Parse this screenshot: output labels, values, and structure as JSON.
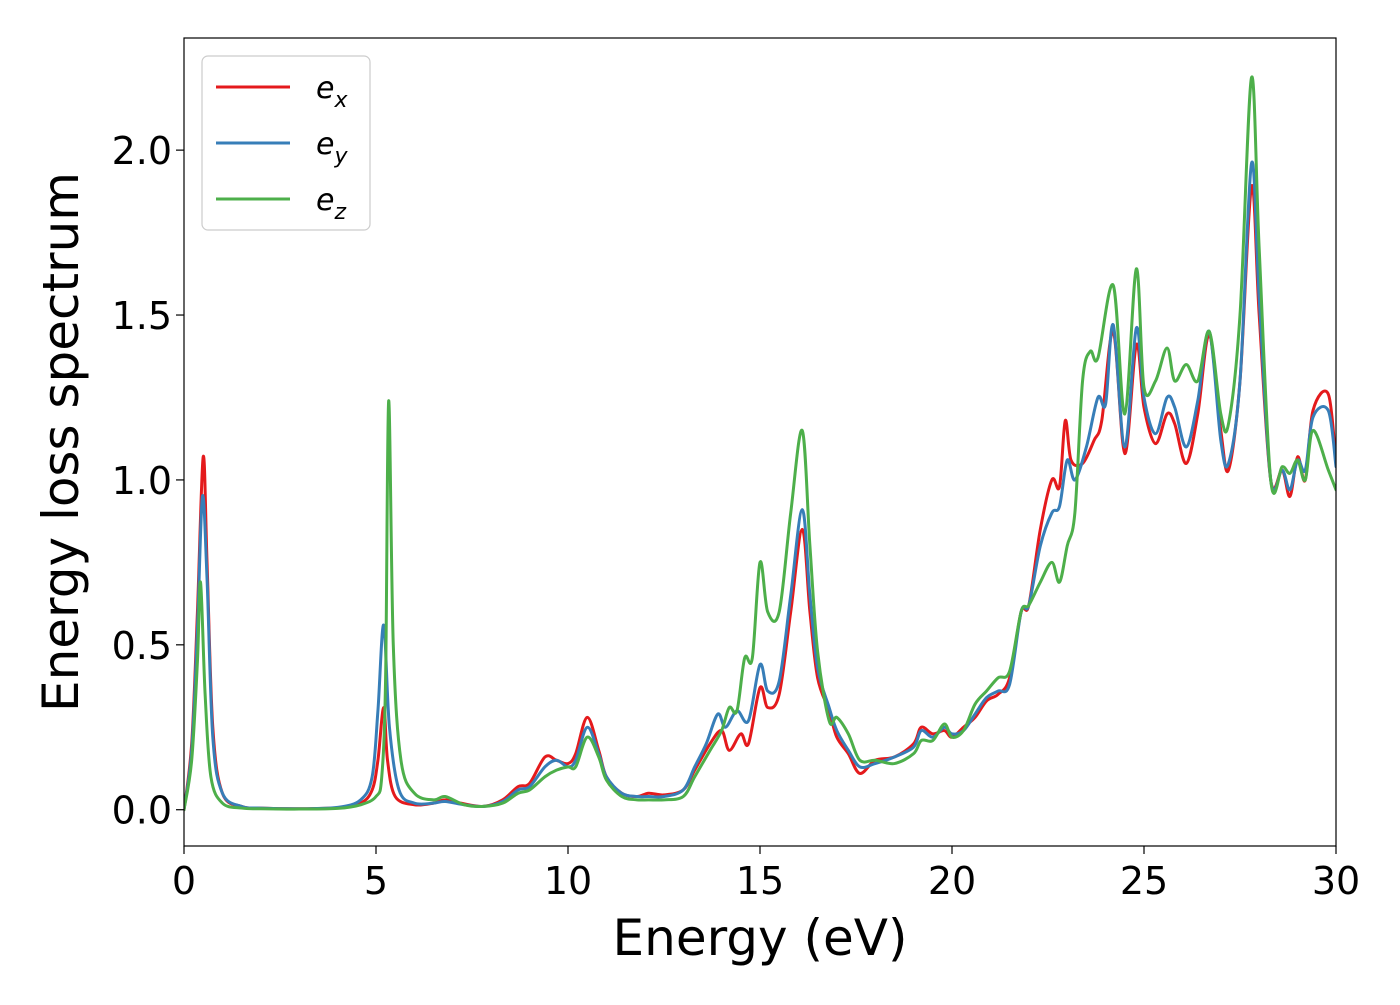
{
  "chart_data": {
    "type": "line",
    "xlabel": "Energy (eV)",
    "ylabel": "Energy loss spectrum",
    "xlim": [
      0,
      30
    ],
    "ylim": [
      -0.11,
      2.34
    ],
    "xticks": [
      0,
      5,
      10,
      15,
      20,
      25,
      30
    ],
    "xtick_labels": [
      "0",
      "5",
      "10",
      "15",
      "20",
      "25",
      "30"
    ],
    "yticks": [
      0.0,
      0.5,
      1.0,
      1.5,
      2.0
    ],
    "ytick_labels": [
      "0.0",
      "0.5",
      "1.0",
      "1.5",
      "2.0"
    ],
    "grid": false,
    "legend_position": "top-left",
    "series": [
      {
        "name": "e_x",
        "label_base": "e",
        "label_sub": "x",
        "color": "#e41a1c",
        "points": [
          [
            0,
            0
          ],
          [
            0.2,
            0.2
          ],
          [
            0.35,
            0.6
          ],
          [
            0.5,
            1.07
          ],
          [
            0.6,
            0.75
          ],
          [
            0.75,
            0.25
          ],
          [
            1.0,
            0.05
          ],
          [
            1.5,
            0.01
          ],
          [
            2,
            0.005
          ],
          [
            3,
            0.003
          ],
          [
            4,
            0.006
          ],
          [
            4.6,
            0.02
          ],
          [
            4.9,
            0.06
          ],
          [
            5.05,
            0.15
          ],
          [
            5.2,
            0.31
          ],
          [
            5.3,
            0.15
          ],
          [
            5.5,
            0.04
          ],
          [
            6,
            0.015
          ],
          [
            6.5,
            0.02
          ],
          [
            6.8,
            0.03
          ],
          [
            7.2,
            0.02
          ],
          [
            7.8,
            0.01
          ],
          [
            8.3,
            0.03
          ],
          [
            8.7,
            0.07
          ],
          [
            9.0,
            0.08
          ],
          [
            9.4,
            0.16
          ],
          [
            9.7,
            0.15
          ],
          [
            10.0,
            0.14
          ],
          [
            10.2,
            0.17
          ],
          [
            10.5,
            0.28
          ],
          [
            10.8,
            0.18
          ],
          [
            11.0,
            0.1
          ],
          [
            11.4,
            0.05
          ],
          [
            11.8,
            0.04
          ],
          [
            12.1,
            0.05
          ],
          [
            12.5,
            0.045
          ],
          [
            13.0,
            0.06
          ],
          [
            13.3,
            0.12
          ],
          [
            13.7,
            0.2
          ],
          [
            14.0,
            0.24
          ],
          [
            14.2,
            0.18
          ],
          [
            14.5,
            0.23
          ],
          [
            14.7,
            0.2
          ],
          [
            15.0,
            0.37
          ],
          [
            15.2,
            0.31
          ],
          [
            15.5,
            0.35
          ],
          [
            15.8,
            0.6
          ],
          [
            16.1,
            0.85
          ],
          [
            16.3,
            0.6
          ],
          [
            16.5,
            0.4
          ],
          [
            16.8,
            0.3
          ],
          [
            17.0,
            0.22
          ],
          [
            17.3,
            0.17
          ],
          [
            17.6,
            0.11
          ],
          [
            18.0,
            0.15
          ],
          [
            18.5,
            0.16
          ],
          [
            19.0,
            0.2
          ],
          [
            19.2,
            0.25
          ],
          [
            19.5,
            0.23
          ],
          [
            19.8,
            0.24
          ],
          [
            20.0,
            0.22
          ],
          [
            20.3,
            0.25
          ],
          [
            20.6,
            0.28
          ],
          [
            20.9,
            0.33
          ],
          [
            21.2,
            0.35
          ],
          [
            21.5,
            0.4
          ],
          [
            21.8,
            0.6
          ],
          [
            22.0,
            0.62
          ],
          [
            22.3,
            0.85
          ],
          [
            22.6,
            1.0
          ],
          [
            22.8,
            0.98
          ],
          [
            22.95,
            1.18
          ],
          [
            23.1,
            1.06
          ],
          [
            23.4,
            1.05
          ],
          [
            23.7,
            1.12
          ],
          [
            23.9,
            1.18
          ],
          [
            24.2,
            1.45
          ],
          [
            24.5,
            1.08
          ],
          [
            24.8,
            1.41
          ],
          [
            25.0,
            1.22
          ],
          [
            25.3,
            1.11
          ],
          [
            25.6,
            1.2
          ],
          [
            25.8,
            1.17
          ],
          [
            26.1,
            1.05
          ],
          [
            26.4,
            1.2
          ],
          [
            26.7,
            1.44
          ],
          [
            27.0,
            1.15
          ],
          [
            27.2,
            1.03
          ],
          [
            27.5,
            1.3
          ],
          [
            27.8,
            1.89
          ],
          [
            28.0,
            1.5
          ],
          [
            28.3,
            1.0
          ],
          [
            28.6,
            1.03
          ],
          [
            28.8,
            0.95
          ],
          [
            29.0,
            1.07
          ],
          [
            29.2,
            1.0
          ],
          [
            29.4,
            1.21
          ],
          [
            29.8,
            1.26
          ],
          [
            30.0,
            1.05
          ]
        ]
      },
      {
        "name": "e_y",
        "label_base": "e",
        "label_sub": "y",
        "color": "#377eb8",
        "points": [
          [
            0,
            0
          ],
          [
            0.2,
            0.18
          ],
          [
            0.35,
            0.55
          ],
          [
            0.48,
            0.95
          ],
          [
            0.6,
            0.7
          ],
          [
            0.75,
            0.22
          ],
          [
            1.0,
            0.05
          ],
          [
            1.5,
            0.01
          ],
          [
            2,
            0.005
          ],
          [
            3,
            0.003
          ],
          [
            4,
            0.007
          ],
          [
            4.6,
            0.03
          ],
          [
            4.9,
            0.1
          ],
          [
            5.05,
            0.3
          ],
          [
            5.2,
            0.56
          ],
          [
            5.35,
            0.25
          ],
          [
            5.6,
            0.06
          ],
          [
            6,
            0.02
          ],
          [
            6.5,
            0.02
          ],
          [
            6.8,
            0.025
          ],
          [
            7.3,
            0.015
          ],
          [
            7.8,
            0.01
          ],
          [
            8.3,
            0.025
          ],
          [
            8.7,
            0.06
          ],
          [
            9.0,
            0.07
          ],
          [
            9.4,
            0.13
          ],
          [
            9.7,
            0.15
          ],
          [
            10.0,
            0.13
          ],
          [
            10.2,
            0.15
          ],
          [
            10.5,
            0.25
          ],
          [
            10.8,
            0.17
          ],
          [
            11.0,
            0.1
          ],
          [
            11.4,
            0.05
          ],
          [
            11.8,
            0.04
          ],
          [
            12.1,
            0.04
          ],
          [
            12.5,
            0.04
          ],
          [
            13.0,
            0.06
          ],
          [
            13.3,
            0.13
          ],
          [
            13.6,
            0.2
          ],
          [
            13.9,
            0.29
          ],
          [
            14.1,
            0.25
          ],
          [
            14.4,
            0.3
          ],
          [
            14.7,
            0.27
          ],
          [
            15.0,
            0.44
          ],
          [
            15.2,
            0.36
          ],
          [
            15.5,
            0.39
          ],
          [
            15.8,
            0.65
          ],
          [
            16.1,
            0.91
          ],
          [
            16.3,
            0.65
          ],
          [
            16.5,
            0.43
          ],
          [
            16.8,
            0.31
          ],
          [
            17.0,
            0.24
          ],
          [
            17.3,
            0.18
          ],
          [
            17.6,
            0.13
          ],
          [
            18.0,
            0.14
          ],
          [
            18.5,
            0.16
          ],
          [
            19.0,
            0.19
          ],
          [
            19.2,
            0.24
          ],
          [
            19.5,
            0.22
          ],
          [
            19.8,
            0.25
          ],
          [
            20.0,
            0.23
          ],
          [
            20.3,
            0.24
          ],
          [
            20.6,
            0.29
          ],
          [
            20.9,
            0.34
          ],
          [
            21.2,
            0.36
          ],
          [
            21.5,
            0.38
          ],
          [
            21.8,
            0.6
          ],
          [
            22.0,
            0.62
          ],
          [
            22.3,
            0.8
          ],
          [
            22.6,
            0.9
          ],
          [
            22.8,
            0.92
          ],
          [
            23.0,
            1.06
          ],
          [
            23.2,
            1.0
          ],
          [
            23.5,
            1.1
          ],
          [
            23.8,
            1.25
          ],
          [
            24.0,
            1.23
          ],
          [
            24.2,
            1.47
          ],
          [
            24.5,
            1.1
          ],
          [
            24.8,
            1.46
          ],
          [
            25.0,
            1.25
          ],
          [
            25.3,
            1.14
          ],
          [
            25.6,
            1.25
          ],
          [
            25.8,
            1.22
          ],
          [
            26.1,
            1.1
          ],
          [
            26.4,
            1.24
          ],
          [
            26.7,
            1.45
          ],
          [
            27.0,
            1.12
          ],
          [
            27.2,
            1.05
          ],
          [
            27.5,
            1.3
          ],
          [
            27.8,
            1.96
          ],
          [
            28.0,
            1.55
          ],
          [
            28.3,
            1.0
          ],
          [
            28.6,
            1.03
          ],
          [
            28.8,
            0.97
          ],
          [
            29.0,
            1.06
          ],
          [
            29.2,
            1.03
          ],
          [
            29.4,
            1.19
          ],
          [
            29.8,
            1.21
          ],
          [
            30.0,
            1.04
          ]
        ]
      },
      {
        "name": "e_z",
        "label_base": "e",
        "label_sub": "z",
        "color": "#4daf4a",
        "points": [
          [
            0,
            0
          ],
          [
            0.2,
            0.15
          ],
          [
            0.35,
            0.45
          ],
          [
            0.43,
            0.69
          ],
          [
            0.55,
            0.35
          ],
          [
            0.7,
            0.1
          ],
          [
            1.0,
            0.02
          ],
          [
            1.5,
            0.005
          ],
          [
            2,
            0.003
          ],
          [
            3,
            0.002
          ],
          [
            4,
            0.004
          ],
          [
            4.6,
            0.015
          ],
          [
            5.0,
            0.04
          ],
          [
            5.15,
            0.1
          ],
          [
            5.25,
            0.4
          ],
          [
            5.33,
            1.24
          ],
          [
            5.45,
            0.5
          ],
          [
            5.65,
            0.15
          ],
          [
            6.0,
            0.05
          ],
          [
            6.5,
            0.03
          ],
          [
            6.8,
            0.04
          ],
          [
            7.3,
            0.015
          ],
          [
            7.8,
            0.01
          ],
          [
            8.3,
            0.02
          ],
          [
            8.7,
            0.05
          ],
          [
            9.0,
            0.06
          ],
          [
            9.4,
            0.1
          ],
          [
            9.7,
            0.12
          ],
          [
            10.0,
            0.13
          ],
          [
            10.2,
            0.13
          ],
          [
            10.5,
            0.22
          ],
          [
            10.8,
            0.16
          ],
          [
            11.0,
            0.09
          ],
          [
            11.4,
            0.04
          ],
          [
            11.8,
            0.03
          ],
          [
            12.1,
            0.03
          ],
          [
            12.5,
            0.03
          ],
          [
            13.0,
            0.04
          ],
          [
            13.3,
            0.1
          ],
          [
            13.7,
            0.18
          ],
          [
            14.0,
            0.24
          ],
          [
            14.2,
            0.31
          ],
          [
            14.4,
            0.3
          ],
          [
            14.6,
            0.46
          ],
          [
            14.8,
            0.46
          ],
          [
            15.0,
            0.75
          ],
          [
            15.2,
            0.6
          ],
          [
            15.5,
            0.6
          ],
          [
            15.8,
            0.9
          ],
          [
            16.1,
            1.15
          ],
          [
            16.3,
            0.8
          ],
          [
            16.5,
            0.48
          ],
          [
            16.8,
            0.27
          ],
          [
            17.0,
            0.28
          ],
          [
            17.3,
            0.23
          ],
          [
            17.6,
            0.15
          ],
          [
            18.0,
            0.15
          ],
          [
            18.5,
            0.14
          ],
          [
            19.0,
            0.17
          ],
          [
            19.2,
            0.21
          ],
          [
            19.5,
            0.21
          ],
          [
            19.8,
            0.26
          ],
          [
            20.0,
            0.22
          ],
          [
            20.3,
            0.24
          ],
          [
            20.6,
            0.32
          ],
          [
            20.9,
            0.36
          ],
          [
            21.2,
            0.4
          ],
          [
            21.5,
            0.42
          ],
          [
            21.8,
            0.6
          ],
          [
            22.0,
            0.62
          ],
          [
            22.3,
            0.69
          ],
          [
            22.6,
            0.75
          ],
          [
            22.8,
            0.69
          ],
          [
            23.0,
            0.8
          ],
          [
            23.2,
            0.9
          ],
          [
            23.4,
            1.3
          ],
          [
            23.6,
            1.39
          ],
          [
            23.8,
            1.37
          ],
          [
            24.2,
            1.59
          ],
          [
            24.5,
            1.2
          ],
          [
            24.8,
            1.64
          ],
          [
            25.0,
            1.28
          ],
          [
            25.3,
            1.3
          ],
          [
            25.6,
            1.4
          ],
          [
            25.8,
            1.3
          ],
          [
            26.1,
            1.35
          ],
          [
            26.4,
            1.3
          ],
          [
            26.7,
            1.45
          ],
          [
            27.0,
            1.2
          ],
          [
            27.2,
            1.17
          ],
          [
            27.5,
            1.5
          ],
          [
            27.8,
            2.22
          ],
          [
            28.0,
            1.7
          ],
          [
            28.3,
            1.0
          ],
          [
            28.6,
            1.04
          ],
          [
            28.8,
            1.02
          ],
          [
            29.0,
            1.06
          ],
          [
            29.2,
            1.0
          ],
          [
            29.4,
            1.15
          ],
          [
            29.8,
            1.03
          ],
          [
            30.0,
            0.97
          ]
        ]
      }
    ]
  }
}
